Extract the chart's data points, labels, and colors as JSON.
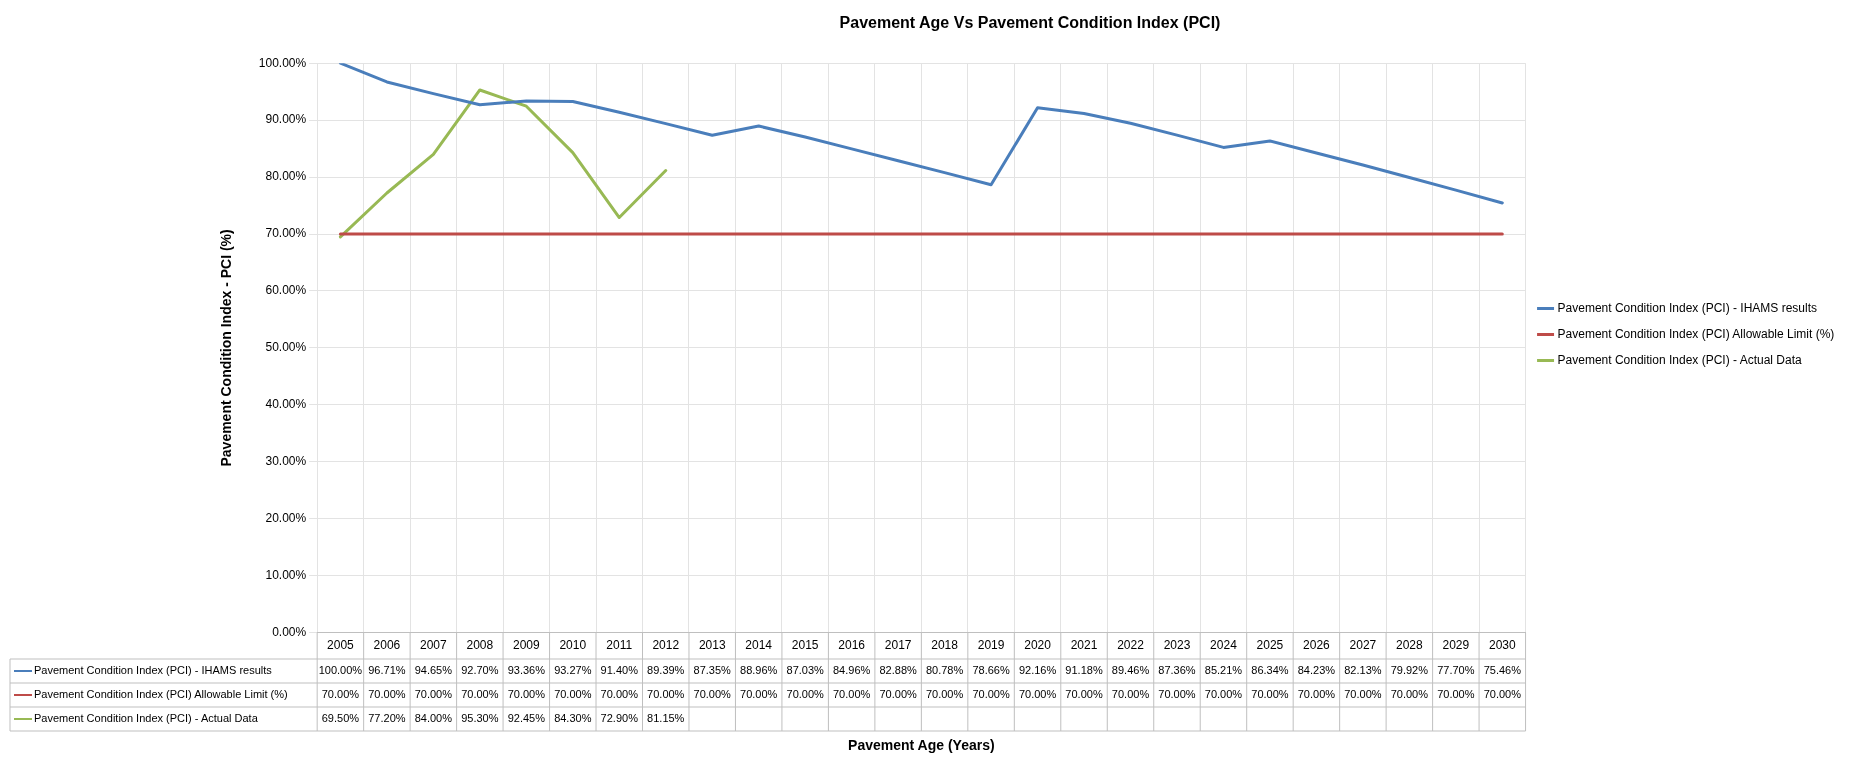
{
  "chart_data": {
    "type": "line",
    "title": "Pavement Age Vs Pavement Condition Index (PCI)",
    "annotations": [
      "Pavement Age (Years)"
    ],
    "ylabel": "Pavement Condition Index - PCI (%)",
    "categories": [
      "2005",
      "2006",
      "2007",
      "2008",
      "2009",
      "2010",
      "2011",
      "2012",
      "2013",
      "2014",
      "2015",
      "2016",
      "2017",
      "2018",
      "2019",
      "2020",
      "2021",
      "2022",
      "2023",
      "2024",
      "2025",
      "2026",
      "2027",
      "2028",
      "2029",
      "2030"
    ],
    "series": [
      {
        "name": "Pavement Condition Index (PCI) - IHAMS results",
        "color": "#4a7ebb",
        "values": [
          100,
          96.71,
          94.65,
          92.7,
          93.36,
          93.27,
          91.4,
          89.39,
          87.35,
          88.96,
          87.03,
          84.96,
          82.88,
          80.78,
          78.66,
          92.16,
          91.18,
          89.46,
          87.36,
          85.21,
          86.34,
          84.23,
          82.13,
          79.92,
          77.7,
          75.46
        ],
        "value_labels": [
          "100.00%",
          "96.71%",
          "94.65%",
          "92.70%",
          "93.36%",
          "93.27%",
          "91.40%",
          "89.39%",
          "87.35%",
          "88.96%",
          "87.03%",
          "84.96%",
          "82.88%",
          "80.78%",
          "78.66%",
          "92.16%",
          "91.18%",
          "89.46%",
          "87.36%",
          "85.21%",
          "86.34%",
          "84.23%",
          "82.13%",
          "79.92%",
          "77.70%",
          "75.46%"
        ]
      },
      {
        "name": "Pavement Condition Index (PCI) Allowable Limit (%)",
        "color": "#be4b48",
        "values": [
          70,
          70,
          70,
          70,
          70,
          70,
          70,
          70,
          70,
          70,
          70,
          70,
          70,
          70,
          70,
          70,
          70,
          70,
          70,
          70,
          70,
          70,
          70,
          70,
          70,
          70
        ],
        "value_labels": [
          "70.00%",
          "70.00%",
          "70.00%",
          "70.00%",
          "70.00%",
          "70.00%",
          "70.00%",
          "70.00%",
          "70.00%",
          "70.00%",
          "70.00%",
          "70.00%",
          "70.00%",
          "70.00%",
          "70.00%",
          "70.00%",
          "70.00%",
          "70.00%",
          "70.00%",
          "70.00%",
          "70.00%",
          "70.00%",
          "70.00%",
          "70.00%",
          "70.00%",
          "70.00%"
        ]
      },
      {
        "name": "Pavement Condition Index (PCI) - Actual Data",
        "color": "#98b954",
        "values": [
          69.5,
          77.2,
          84,
          95.3,
          92.45,
          84.3,
          72.9,
          81.15,
          null,
          null,
          null,
          null,
          null,
          null,
          null,
          null,
          null,
          null,
          null,
          null,
          null,
          null,
          null,
          null,
          null,
          null
        ],
        "value_labels": [
          "69.50%",
          "77.20%",
          "84.00%",
          "95.30%",
          "92.45%",
          "84.30%",
          "72.90%",
          "81.15%",
          null,
          null,
          null,
          null,
          null,
          null,
          null,
          null,
          null,
          null,
          null,
          null,
          null,
          null,
          null,
          null,
          null,
          null
        ]
      }
    ],
    "ylim": [
      0,
      100
    ],
    "yticks": [
      {
        "value": 0,
        "label": "0.00%"
      },
      {
        "value": 10,
        "label": "10.00%"
      },
      {
        "value": 20,
        "label": "20.00%"
      },
      {
        "value": 30,
        "label": "30.00%"
      },
      {
        "value": 40,
        "label": "40.00%"
      },
      {
        "value": 50,
        "label": "50.00%"
      },
      {
        "value": 60,
        "label": "60.00%"
      },
      {
        "value": 70,
        "label": "70.00%"
      },
      {
        "value": 80,
        "label": "80.00%"
      },
      {
        "value": 90,
        "label": "90.00%"
      },
      {
        "value": 100,
        "label": "100.00%"
      }
    ],
    "grid": true,
    "legend": "right",
    "marker": "none",
    "line_style": "solid"
  }
}
